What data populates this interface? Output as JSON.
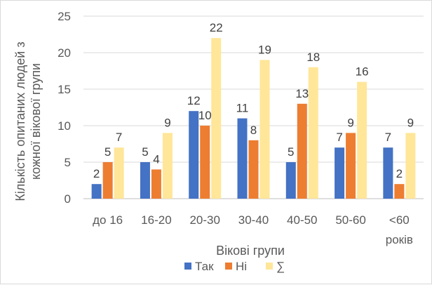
{
  "chart_data": {
    "type": "bar",
    "title": "",
    "xlabel": "Вікові групи",
    "ylabel": "Кількість опитаних людей з кожної вікової групи",
    "ylim": [
      0,
      25
    ],
    "yticks": [
      0,
      5,
      10,
      15,
      20,
      25
    ],
    "grid": true,
    "legend_position": "bottom",
    "categories": [
      "до 16",
      "16-20",
      "20-30",
      "30-40",
      "40-50",
      "50-60",
      "<60 років"
    ],
    "series": [
      {
        "name": "Так",
        "color": "#4472C4",
        "values": [
          2,
          5,
          12,
          11,
          5,
          7,
          7
        ]
      },
      {
        "name": "Ні",
        "color": "#ED7D31",
        "values": [
          5,
          4,
          10,
          8,
          13,
          9,
          2
        ]
      },
      {
        "name": "∑",
        "color": "#FFE699",
        "values": [
          7,
          9,
          22,
          19,
          18,
          16,
          9
        ]
      }
    ]
  }
}
